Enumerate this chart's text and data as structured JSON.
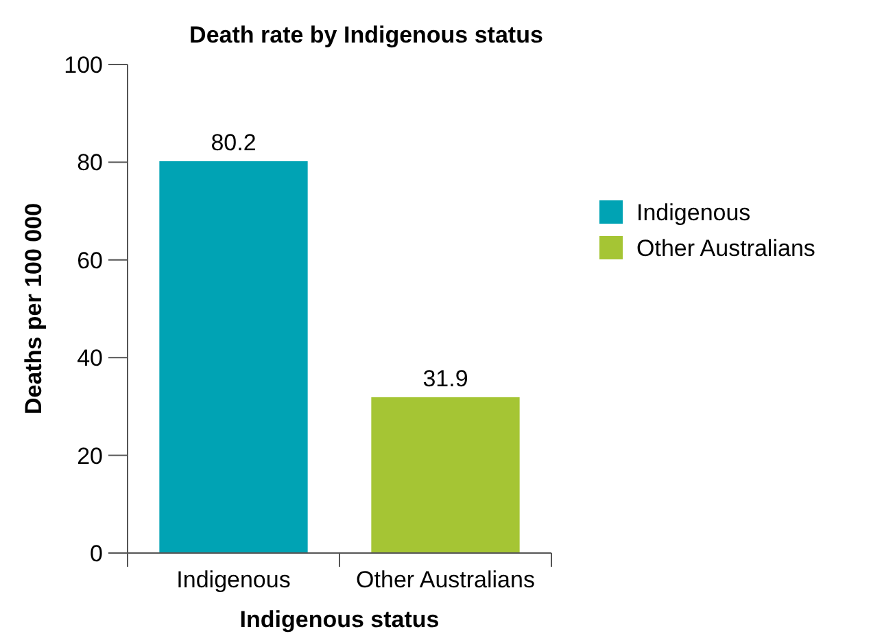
{
  "chart_data": {
    "type": "bar",
    "title": "Death rate by Indigenous status",
    "xlabel": "Indigenous status",
    "ylabel": "Deaths per 100 000",
    "categories": [
      "Indigenous",
      "Other Australians"
    ],
    "series": [
      {
        "name": "Indigenous",
        "color": "#00a3b4",
        "values": [
          80.2,
          null
        ]
      },
      {
        "name": "Other Australians",
        "color": "#a5c534",
        "values": [
          null,
          31.9
        ]
      }
    ],
    "stacked": true,
    "ylim": [
      0,
      100
    ],
    "yticks": [
      0,
      20,
      40,
      60,
      80,
      100
    ],
    "data_labels": true,
    "legend": "right",
    "grid": false
  }
}
